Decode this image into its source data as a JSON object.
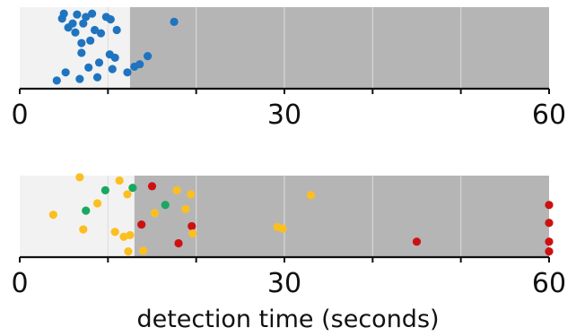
{
  "chart_data": [
    {
      "type": "scatter",
      "xlim": [
        0,
        60
      ],
      "xticks": [
        "0",
        "30",
        "60"
      ],
      "grid": true,
      "shaded_region_start": 12.5,
      "colors": {
        "dot": "#1f74c0",
        "region_light": "#f2f2f2",
        "region_dark": "#b5b5b5",
        "grid": "#dddddd"
      },
      "points": [
        {
          "x": 4.2,
          "y": 0.1
        },
        {
          "x": 4.8,
          "y": 0.86
        },
        {
          "x": 5.0,
          "y": 0.92
        },
        {
          "x": 5.2,
          "y": 0.2
        },
        {
          "x": 5.5,
          "y": 0.75
        },
        {
          "x": 6.0,
          "y": 0.8
        },
        {
          "x": 6.3,
          "y": 0.69
        },
        {
          "x": 6.5,
          "y": 0.91
        },
        {
          "x": 6.8,
          "y": 0.12
        },
        {
          "x": 7.0,
          "y": 0.44
        },
        {
          "x": 7.0,
          "y": 0.56
        },
        {
          "x": 7.2,
          "y": 0.8
        },
        {
          "x": 7.5,
          "y": 0.88
        },
        {
          "x": 7.8,
          "y": 0.26
        },
        {
          "x": 8.0,
          "y": 0.59
        },
        {
          "x": 8.2,
          "y": 0.92
        },
        {
          "x": 8.5,
          "y": 0.72
        },
        {
          "x": 8.8,
          "y": 0.14
        },
        {
          "x": 9.0,
          "y": 0.32
        },
        {
          "x": 9.2,
          "y": 0.68
        },
        {
          "x": 9.8,
          "y": 0.88
        },
        {
          "x": 10.2,
          "y": 0.42
        },
        {
          "x": 10.3,
          "y": 0.85
        },
        {
          "x": 10.5,
          "y": 0.24
        },
        {
          "x": 10.8,
          "y": 0.38
        },
        {
          "x": 11.0,
          "y": 0.72
        },
        {
          "x": 12.2,
          "y": 0.2
        },
        {
          "x": 13.0,
          "y": 0.27
        },
        {
          "x": 13.6,
          "y": 0.3
        },
        {
          "x": 14.5,
          "y": 0.4
        },
        {
          "x": 17.5,
          "y": 0.82
        }
      ]
    },
    {
      "type": "scatter",
      "xlim": [
        0,
        60
      ],
      "xticks": [
        "0",
        "30",
        "60"
      ],
      "xlabel": "detection time (seconds)",
      "grid": true,
      "shaded_region_start": 13.0,
      "colors": {
        "region_light": "#f2f2f2",
        "region_dark": "#b5b5b5",
        "grid": "#dddddd"
      },
      "points": [
        {
          "x": 3.8,
          "y": 0.52,
          "color": "#fbbf1f"
        },
        {
          "x": 6.8,
          "y": 0.98,
          "color": "#fbbf1f"
        },
        {
          "x": 7.2,
          "y": 0.34,
          "color": "#fbbf1f"
        },
        {
          "x": 7.5,
          "y": 0.57,
          "color": "#1aa860"
        },
        {
          "x": 8.8,
          "y": 0.66,
          "color": "#fbbf1f"
        },
        {
          "x": 9.7,
          "y": 0.82,
          "color": "#1aa860"
        },
        {
          "x": 10.8,
          "y": 0.31,
          "color": "#fbbf1f"
        },
        {
          "x": 11.3,
          "y": 0.94,
          "color": "#fbbf1f"
        },
        {
          "x": 11.8,
          "y": 0.25,
          "color": "#fbbf1f"
        },
        {
          "x": 12.5,
          "y": 0.27,
          "color": "#fbbf1f"
        },
        {
          "x": 12.2,
          "y": 0.77,
          "color": "#fbbf1f"
        },
        {
          "x": 12.3,
          "y": 0.07,
          "color": "#fbbf1f"
        },
        {
          "x": 12.8,
          "y": 0.85,
          "color": "#1aa860"
        },
        {
          "x": 13.8,
          "y": 0.4,
          "color": "#cc1111"
        },
        {
          "x": 14.0,
          "y": 0.08,
          "color": "#fbbf1f"
        },
        {
          "x": 15.0,
          "y": 0.87,
          "color": "#cc1111"
        },
        {
          "x": 15.3,
          "y": 0.54,
          "color": "#fbbf1f"
        },
        {
          "x": 16.5,
          "y": 0.64,
          "color": "#1aa860"
        },
        {
          "x": 17.8,
          "y": 0.82,
          "color": "#fbbf1f"
        },
        {
          "x": 18.0,
          "y": 0.17,
          "color": "#cc1111"
        },
        {
          "x": 18.8,
          "y": 0.59,
          "color": "#fbbf1f"
        },
        {
          "x": 19.4,
          "y": 0.77,
          "color": "#fbbf1f"
        },
        {
          "x": 19.5,
          "y": 0.38,
          "color": "#cc1111"
        },
        {
          "x": 19.6,
          "y": 0.29,
          "color": "#fbbf1f"
        },
        {
          "x": 29.2,
          "y": 0.37,
          "color": "#fbbf1f"
        },
        {
          "x": 29.8,
          "y": 0.35,
          "color": "#fbbf1f"
        },
        {
          "x": 33.0,
          "y": 0.76,
          "color": "#fbbf1f"
        },
        {
          "x": 45.0,
          "y": 0.19,
          "color": "#cc1111"
        },
        {
          "x": 60.0,
          "y": 0.64,
          "color": "#cc1111"
        },
        {
          "x": 60.0,
          "y": 0.42,
          "color": "#cc1111"
        },
        {
          "x": 60.0,
          "y": 0.19,
          "color": "#cc1111"
        },
        {
          "x": 60.0,
          "y": 0.07,
          "color": "#cc1111"
        }
      ]
    }
  ]
}
